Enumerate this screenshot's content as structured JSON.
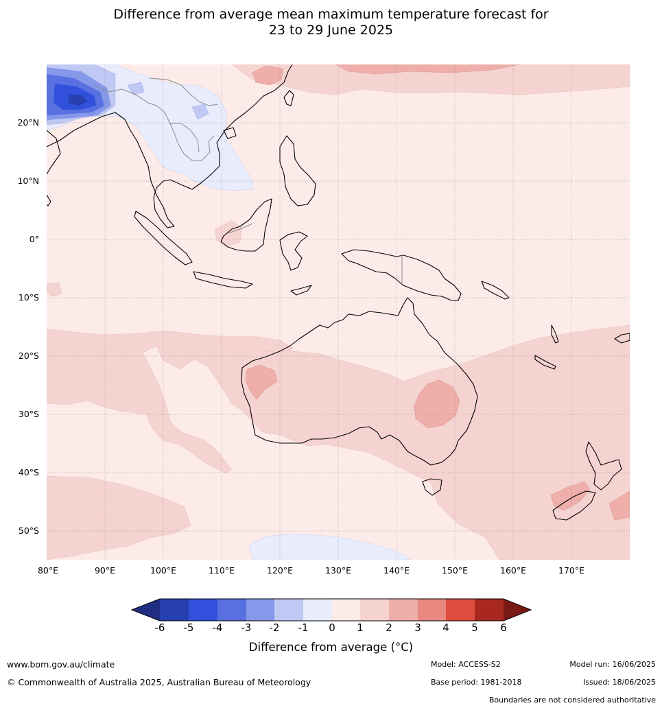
{
  "title_line1": "Difference from average mean maximum temperature forecast for",
  "title_line2": "23 to 29 June 2025",
  "map": {
    "lat_labels": [
      "20°N",
      "10°N",
      "0°",
      "10°S",
      "20°S",
      "30°S",
      "40°S",
      "50°S"
    ],
    "lon_labels": [
      "80°E",
      "90°E",
      "100°E",
      "110°E",
      "120°E",
      "130°E",
      "140°E",
      "150°E",
      "160°E",
      "170°E"
    ],
    "lon_range": [
      80,
      180
    ],
    "lat_range": [
      -55,
      30
    ],
    "gridlines": true
  },
  "colorbar": {
    "ticks": [
      "-6",
      "-5",
      "-4",
      "-3",
      "-2",
      "-1",
      "0",
      "1",
      "2",
      "3",
      "4",
      "5",
      "6"
    ],
    "colors": [
      "#1f2e80",
      "#2640b0",
      "#3151dc",
      "#5870e0",
      "#8598ea",
      "#c0c8f4",
      "#e8ecfc",
      "#fcebe8",
      "#f5d3d0",
      "#eeaeaa",
      "#e88880",
      "#dc4d40",
      "#a82820",
      "#7a1a16"
    ],
    "label": "Difference from average (°C)"
  },
  "footer": {
    "website": "www.bom.gov.au/climate",
    "copyright": "© Commonwealth of Australia 2025, Australian Bureau of Meteorology",
    "model": "Model: ACCESS-S2",
    "base_period": "Base period: 1981-2018",
    "model_run": "Model run: 16/06/2025",
    "issued": "Issued: 18/06/2025",
    "disclaimer": "Boundaries are not considered authoritative"
  }
}
